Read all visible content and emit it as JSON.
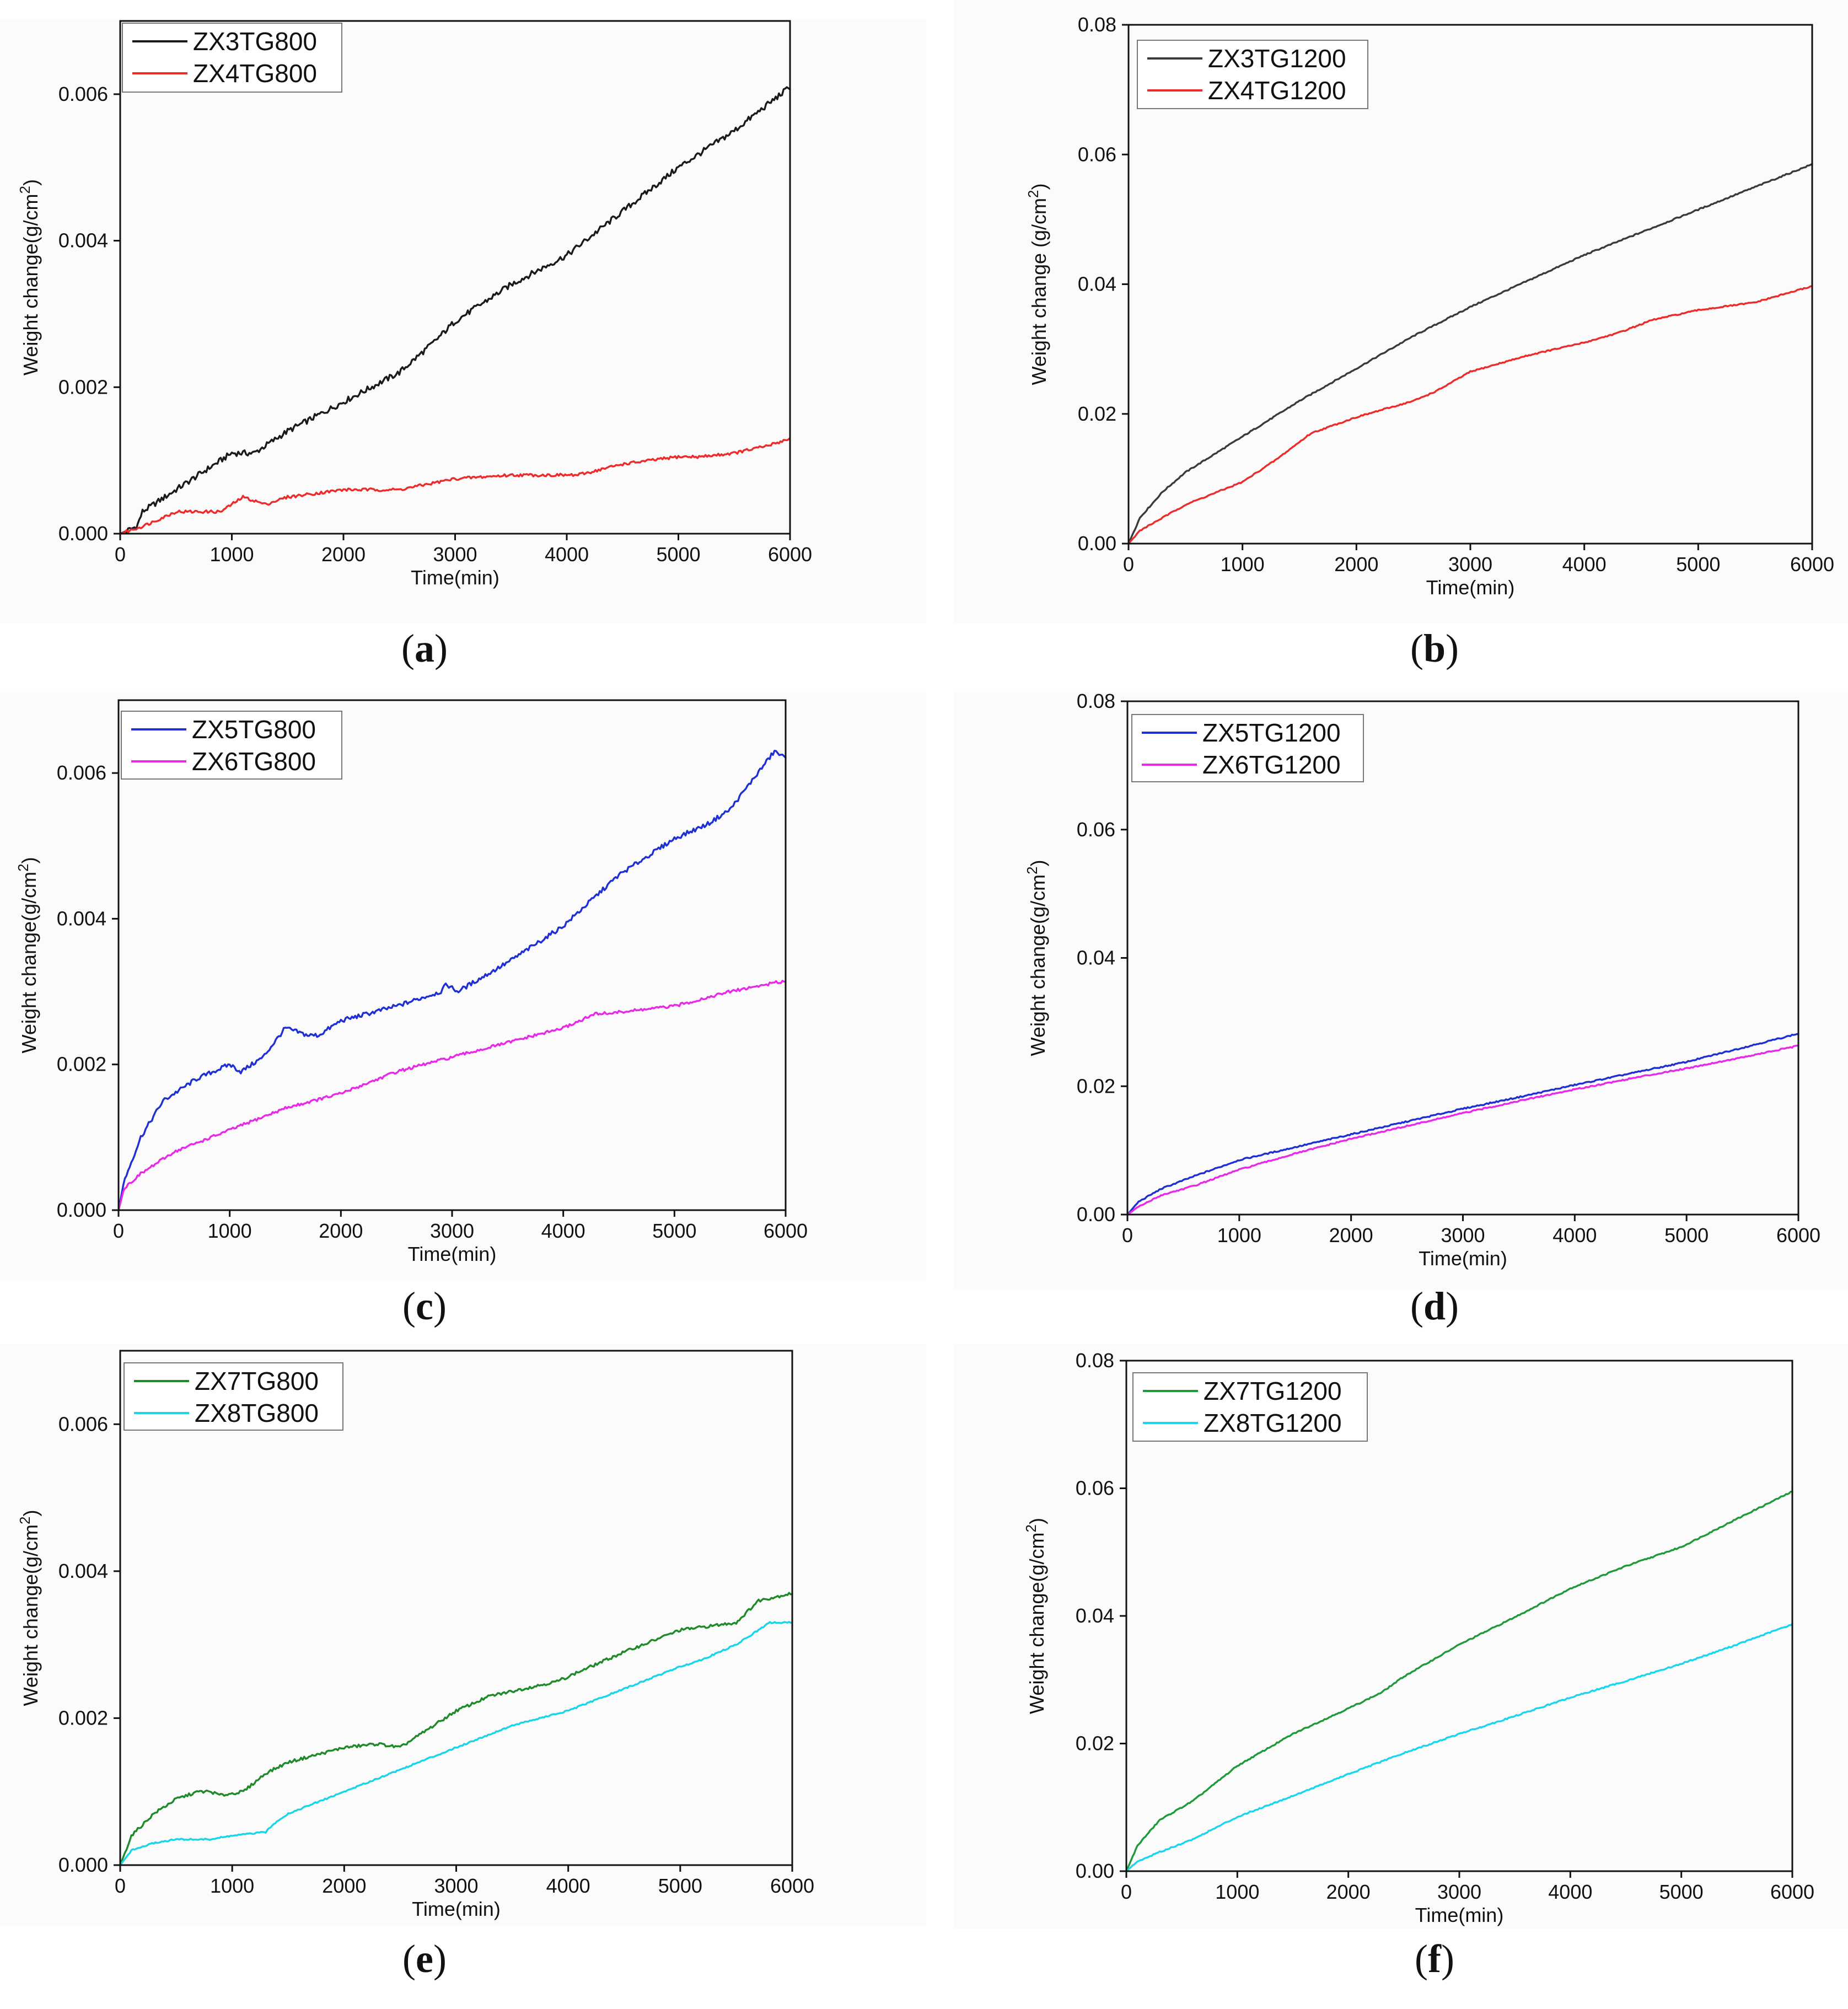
{
  "chart_data": [
    {
      "panel": "a",
      "caption_letter": "a",
      "type": "line",
      "xlabel": "Time(min)",
      "ylabel": "Weight change(g/cm",
      "ylabel_sup": "2",
      "ylabel_close": ")",
      "xlim": [
        0,
        6000
      ],
      "ylim": [
        0,
        0.007
      ],
      "xticks": [
        0,
        1000,
        2000,
        3000,
        4000,
        5000,
        6000
      ],
      "yticks": [
        0,
        0.002,
        0.004,
        0.006
      ],
      "ytick_labels": [
        "0.000",
        "0.002",
        "0.004",
        "0.006"
      ],
      "legend_position": "top-left",
      "series": [
        {
          "name": "ZX3TG800",
          "color": "#1a1a1a",
          "noise": 4e-05,
          "x": [
            0,
            150,
            200,
            300,
            500,
            700,
            1000,
            1200,
            1500,
            2000,
            2500,
            2800,
            3000,
            3500,
            4000,
            4500,
            5000,
            5500,
            6000
          ],
          "y": [
            0,
            0.0001,
            0.0003,
            0.0004,
            0.0006,
            0.0008,
            0.0011,
            0.0011,
            0.0014,
            0.0018,
            0.0022,
            0.0026,
            0.0029,
            0.0034,
            0.0038,
            0.0044,
            0.005,
            0.0055,
            0.0061
          ]
        },
        {
          "name": "ZX4TG800",
          "color": "#ee2b2b",
          "noise": 2e-05,
          "x": [
            0,
            200,
            500,
            900,
            1100,
            1300,
            1500,
            2000,
            2500,
            3000,
            3500,
            3900,
            4100,
            4500,
            5000,
            5200,
            5500,
            5800,
            6000
          ],
          "y": [
            0,
            0.0001,
            0.0003,
            0.0003,
            0.0005,
            0.0004,
            0.0005,
            0.0006,
            0.0006,
            0.00075,
            0.0008,
            0.0008,
            0.0008,
            0.00095,
            0.00105,
            0.00105,
            0.0011,
            0.0012,
            0.0013
          ]
        }
      ]
    },
    {
      "panel": "b",
      "caption_letter": "b",
      "type": "line",
      "xlabel": "Time(min)",
      "ylabel": "Weight change (g/cm",
      "ylabel_sup": "2",
      "ylabel_close": ")",
      "xlim": [
        0,
        6000
      ],
      "ylim": [
        0,
        0.08
      ],
      "xticks": [
        0,
        1000,
        2000,
        3000,
        4000,
        5000,
        6000
      ],
      "yticks": [
        0,
        0.02,
        0.04,
        0.06,
        0.08
      ],
      "ytick_labels": [
        "0.00",
        "0.02",
        "0.04",
        "0.06",
        "0.08"
      ],
      "legend_position": "top-left",
      "series": [
        {
          "name": "ZX3TG1200",
          "color": "#3a3a3a",
          "noise": 0.0001,
          "x": [
            0,
            100,
            300,
            500,
            1000,
            1500,
            2000,
            2500,
            3000,
            3500,
            4000,
            4500,
            5000,
            5500,
            6000
          ],
          "y": [
            0,
            0.004,
            0.008,
            0.011,
            0.0165,
            0.022,
            0.027,
            0.032,
            0.0365,
            0.0405,
            0.0445,
            0.048,
            0.0515,
            0.055,
            0.0585
          ]
        },
        {
          "name": "ZX4TG1200",
          "color": "#ee2b2b",
          "noise": 0.0001,
          "x": [
            0,
            100,
            300,
            500,
            1000,
            1300,
            1600,
            2000,
            2500,
            2700,
            3000,
            3500,
            4000,
            4300,
            4600,
            5000,
            5500,
            6000
          ],
          "y": [
            0,
            0.002,
            0.004,
            0.006,
            0.0095,
            0.013,
            0.017,
            0.0195,
            0.022,
            0.0235,
            0.0265,
            0.029,
            0.031,
            0.0325,
            0.0345,
            0.036,
            0.0372,
            0.0397
          ]
        }
      ]
    },
    {
      "panel": "c",
      "caption_letter": "c",
      "type": "line",
      "xlabel": "Time(min)",
      "ylabel": "Weight change(g/cm",
      "ylabel_sup": "2",
      "ylabel_close": ")",
      "xlim": [
        0,
        6000
      ],
      "ylim": [
        0,
        0.007
      ],
      "xticks": [
        0,
        1000,
        2000,
        3000,
        4000,
        5000,
        6000
      ],
      "yticks": [
        0,
        0.002,
        0.004,
        0.006
      ],
      "ytick_labels": [
        "0.000",
        "0.002",
        "0.004",
        "0.006"
      ],
      "legend_position": "top-left",
      "series": [
        {
          "name": "ZX5TG800",
          "color": "#1f2fd6",
          "noise": 3e-05,
          "x": [
            0,
            50,
            200,
            400,
            700,
            1000,
            1100,
            1300,
            1500,
            1700,
            1800,
            2000,
            2500,
            2900,
            2950,
            3050,
            3500,
            4000,
            4500,
            5000,
            5300,
            5500,
            5900,
            6000
          ],
          "y": [
            0,
            0.0004,
            0.001,
            0.0015,
            0.0018,
            0.002,
            0.0019,
            0.0021,
            0.0025,
            0.0024,
            0.0024,
            0.0026,
            0.0028,
            0.003,
            0.0031,
            0.003,
            0.0034,
            0.0039,
            0.0046,
            0.0051,
            0.0053,
            0.0055,
            0.0063,
            0.0062
          ]
        },
        {
          "name": "ZX6TG800",
          "color": "#e829e8",
          "noise": 2e-05,
          "x": [
            0,
            50,
            200,
            500,
            1000,
            1500,
            2000,
            2500,
            3000,
            3500,
            4000,
            4300,
            4400,
            5000,
            5500,
            6000
          ],
          "y": [
            0,
            0.0003,
            0.0005,
            0.0008,
            0.0011,
            0.0014,
            0.0016,
            0.0019,
            0.0021,
            0.0023,
            0.0025,
            0.0027,
            0.0027,
            0.0028,
            0.003,
            0.00315
          ]
        }
      ]
    },
    {
      "panel": "d",
      "caption_letter": "d",
      "type": "line",
      "xlabel": "Time(min)",
      "ylabel": "Weight change(g/cm",
      "ylabel_sup": "2",
      "ylabel_close": ")",
      "xlim": [
        0,
        6000
      ],
      "ylim": [
        0,
        0.08
      ],
      "xticks": [
        0,
        1000,
        2000,
        3000,
        4000,
        5000,
        6000
      ],
      "yticks": [
        0,
        0.02,
        0.04,
        0.06,
        0.08
      ],
      "ytick_labels": [
        "0.00",
        "0.02",
        "0.04",
        "0.06",
        "0.08"
      ],
      "legend_position": "top-left",
      "series": [
        {
          "name": "ZX5TG1200",
          "color": "#1f2fd6",
          "noise": 0.0001,
          "x": [
            0,
            100,
            300,
            600,
            1000,
            1500,
            2000,
            2500,
            3000,
            3500,
            4000,
            4500,
            5000,
            5500,
            6000
          ],
          "y": [
            0,
            0.002,
            0.004,
            0.006,
            0.0085,
            0.0105,
            0.0125,
            0.0145,
            0.0165,
            0.0183,
            0.0202,
            0.022,
            0.0238,
            0.026,
            0.0282
          ]
        },
        {
          "name": "ZX6TG1200",
          "color": "#e829e8",
          "noise": 0.0001,
          "x": [
            0,
            100,
            300,
            600,
            1000,
            1500,
            2000,
            2500,
            3000,
            3500,
            4000,
            4500,
            5000,
            5500,
            6000
          ],
          "y": [
            0,
            0.0012,
            0.003,
            0.0045,
            0.007,
            0.0095,
            0.0118,
            0.0138,
            0.0158,
            0.0177,
            0.0195,
            0.0212,
            0.0228,
            0.0245,
            0.0263
          ]
        }
      ]
    },
    {
      "panel": "e",
      "caption_letter": "e",
      "type": "line",
      "xlabel": "Time(min)",
      "ylabel": "Weight change(g/cm",
      "ylabel_sup": "2",
      "ylabel_close": ")",
      "xlim": [
        0,
        6000
      ],
      "ylim": [
        0,
        0.007
      ],
      "xticks": [
        0,
        1000,
        2000,
        3000,
        4000,
        5000,
        6000
      ],
      "yticks": [
        0,
        0.002,
        0.004,
        0.006
      ],
      "ytick_labels": [
        "0.000",
        "0.002",
        "0.004",
        "0.006"
      ],
      "legend_position": "top-left",
      "series": [
        {
          "name": "ZX7TG800",
          "color": "#1f8a2a",
          "noise": 2e-05,
          "x": [
            0,
            100,
            300,
            500,
            700,
            800,
            900,
            1100,
            1300,
            1500,
            2000,
            2300,
            2500,
            2800,
            3000,
            3300,
            3600,
            3900,
            4200,
            4500,
            5000,
            5500,
            5700,
            6000
          ],
          "y": [
            0,
            0.0004,
            0.0007,
            0.0009,
            0.001,
            0.001,
            0.00095,
            0.001,
            0.00125,
            0.0014,
            0.0016,
            0.00165,
            0.0016,
            0.0019,
            0.0021,
            0.0023,
            0.0024,
            0.0025,
            0.0027,
            0.0029,
            0.0032,
            0.0033,
            0.0036,
            0.0037
          ]
        },
        {
          "name": "ZX8TG800",
          "color": "#19d5e8",
          "noise": 1e-05,
          "x": [
            0,
            100,
            300,
            500,
            800,
            1000,
            1300,
            1400,
            1500,
            2000,
            2500,
            3000,
            3500,
            4000,
            4500,
            5000,
            5200,
            5500,
            5800,
            6000
          ],
          "y": [
            0,
            0.0002,
            0.0003,
            0.00035,
            0.00035,
            0.0004,
            0.00045,
            0.0006,
            0.0007,
            0.001,
            0.0013,
            0.0016,
            0.0019,
            0.0021,
            0.0024,
            0.0027,
            0.0028,
            0.003,
            0.0033,
            0.0033
          ]
        }
      ]
    },
    {
      "panel": "f",
      "caption_letter": "f",
      "type": "line",
      "xlabel": "Time(min)",
      "ylabel": "Weight change(g/cm",
      "ylabel_sup": "2",
      "ylabel_close": ")",
      "xlim": [
        0,
        6000
      ],
      "ylim": [
        0,
        0.08
      ],
      "xticks": [
        0,
        1000,
        2000,
        3000,
        4000,
        5000,
        6000
      ],
      "yticks": [
        0,
        0.02,
        0.04,
        0.06,
        0.08
      ],
      "ytick_labels": [
        "0.00",
        "0.02",
        "0.04",
        "0.06",
        "0.08"
      ],
      "legend_position": "top-left",
      "series": [
        {
          "name": "ZX7TG1200",
          "color": "#1f9a3a",
          "noise": 0.0001,
          "x": [
            0,
            100,
            300,
            600,
            1000,
            1500,
            2000,
            2300,
            2500,
            3000,
            3500,
            4000,
            4500,
            5000,
            5500,
            6000
          ],
          "y": [
            0,
            0.004,
            0.008,
            0.011,
            0.0165,
            0.0215,
            0.0255,
            0.028,
            0.0305,
            0.0355,
            0.0398,
            0.0443,
            0.0478,
            0.0508,
            0.0552,
            0.0595
          ]
        },
        {
          "name": "ZX8TG1200",
          "color": "#19d5f0",
          "noise": 0.0001,
          "x": [
            0,
            100,
            300,
            600,
            1000,
            1500,
            2000,
            2500,
            3000,
            3500,
            4000,
            4500,
            5000,
            5500,
            6000
          ],
          "y": [
            0,
            0.0015,
            0.003,
            0.005,
            0.0085,
            0.0118,
            0.0152,
            0.0185,
            0.0215,
            0.0243,
            0.0272,
            0.0298,
            0.0325,
            0.0355,
            0.0387
          ]
        }
      ]
    }
  ]
}
